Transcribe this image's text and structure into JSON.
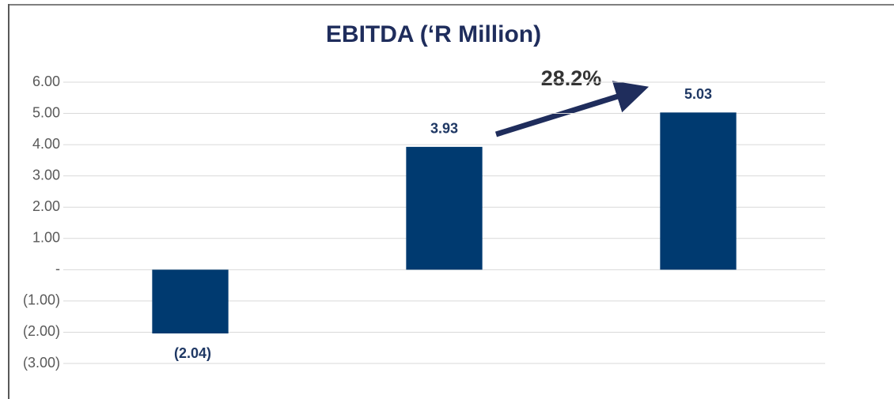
{
  "chart_data": {
    "type": "bar",
    "title": "EBITDA (‘R Million)",
    "categories": [
      null,
      null,
      null
    ],
    "values": [
      -2.04,
      3.93,
      5.03
    ],
    "value_labels": [
      "(2.04)",
      "3.93",
      "5.03"
    ],
    "color": "#003a70",
    "ylim": [
      -3,
      6
    ],
    "yticks": [
      {
        "value": 6,
        "label": "6.00"
      },
      {
        "value": 5,
        "label": "5.00"
      },
      {
        "value": 4,
        "label": "4.00"
      },
      {
        "value": 3,
        "label": "3.00"
      },
      {
        "value": 2,
        "label": "2.00"
      },
      {
        "value": 1,
        "label": "1.00"
      },
      {
        "value": 0,
        "label": "-"
      },
      {
        "value": -1,
        "label": "(1.00)"
      },
      {
        "value": -2,
        "label": "(2.00)"
      },
      {
        "value": -3,
        "label": "(3.00)"
      }
    ],
    "grid": true,
    "annotations": [
      {
        "text": "28.2%"
      }
    ]
  }
}
